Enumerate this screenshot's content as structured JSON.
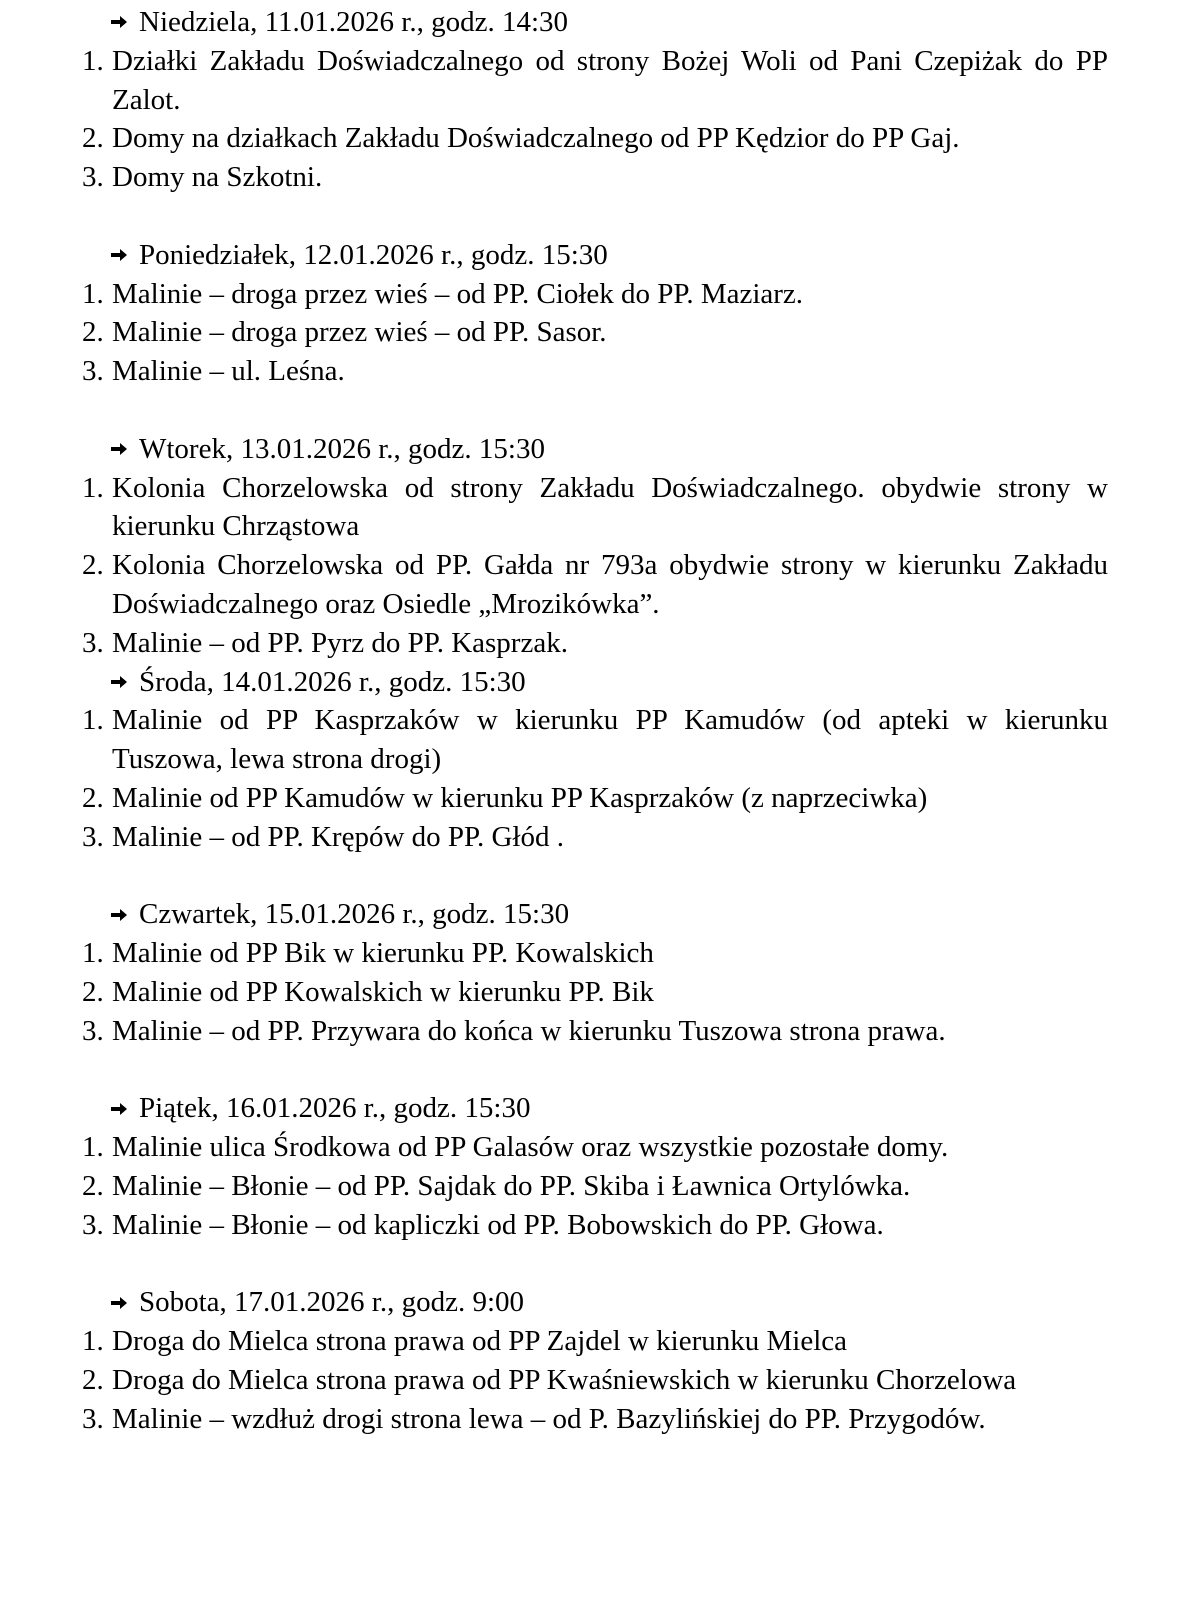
{
  "sections": [
    {
      "icon": "arrow-right-icon",
      "heading": "Niedziela, 11.01.2026 r., godz. 14:30",
      "items": [
        {
          "n": "1.",
          "t": "Działki Zakładu Doświadczalnego od strony Bożej Woli od Pani Czepiżak do PP Zalot."
        },
        {
          "n": "2.",
          "t": "Domy na działkach Zakładu Doświadczalnego od PP Kędzior do PP Gaj."
        },
        {
          "n": "3.",
          "t": "Domy na Szkotni."
        }
      ],
      "gap": true
    },
    {
      "icon": "arrow-right-icon",
      "heading": "Poniedziałek, 12.01.2026 r., godz. 15:30",
      "items": [
        {
          "n": "1.",
          "t": "Malinie – droga przez wieś – od PP. Ciołek do PP. Maziarz."
        },
        {
          "n": "2.",
          "t": "Malinie – droga przez wieś – od PP. Sasor."
        },
        {
          "n": "3.",
          "t": "Malinie – ul. Leśna."
        }
      ],
      "gap": true
    },
    {
      "icon": "arrow-right-icon",
      "heading": "Wtorek, 13.01.2026 r., godz. 15:30",
      "items": [
        {
          "n": "1.",
          "t": "Kolonia Chorzelowska od strony Zakładu Doświadczalnego. obydwie strony w kierunku Chrząstowa"
        },
        {
          "n": "2.",
          "t": "Kolonia Chorzelowska od PP. Gałda nr 793a obydwie strony w kierunku Zakładu Doświadczalnego oraz Osiedle „Mrozikówka”."
        },
        {
          "n": "3.",
          "t": "Malinie – od PP. Pyrz do PP. Kasprzak."
        }
      ],
      "gap": false
    },
    {
      "icon": "arrow-right-icon",
      "heading": "Środa, 14.01.2026 r., godz. 15:30",
      "items": [
        {
          "n": "1.",
          "t": "Malinie od PP Kasprzaków w kierunku PP Kamudów (od apteki w kierunku Tuszowa, lewa strona drogi)"
        },
        {
          "n": "2.",
          "t": "Malinie od PP Kamudów w kierunku PP Kasprzaków (z naprzeciwka)"
        },
        {
          "n": "3.",
          "t": "Malinie – od PP. Krępów do PP. Głód ."
        }
      ],
      "gap": true
    },
    {
      "icon": "arrow-right-icon",
      "heading": "Czwartek, 15.01.2026 r., godz. 15:30",
      "items": [
        {
          "n": "1.",
          "t": "Malinie od PP Bik w kierunku PP. Kowalskich"
        },
        {
          "n": "2.",
          "t": "Malinie od PP Kowalskich w kierunku PP. Bik"
        },
        {
          "n": "3.",
          "t": "Malinie – od PP. Przywara do końca w kierunku Tuszowa strona prawa."
        }
      ],
      "gap": true
    },
    {
      "icon": "arrow-right-icon",
      "heading": "Piątek, 16.01.2026 r., godz. 15:30",
      "items": [
        {
          "n": "1.",
          "t": "Malinie ulica Środkowa od PP Galasów oraz wszystkie pozostałe domy."
        },
        {
          "n": "2.",
          "t": "Malinie – Błonie – od PP. Sajdak do PP. Skiba i Ławnica Ortylówka."
        },
        {
          "n": "3.",
          "t": "Malinie – Błonie – od kapliczki od PP. Bobowskich do PP. Głowa."
        }
      ],
      "gap": true
    },
    {
      "icon": "arrow-right-icon",
      "heading": "Sobota, 17.01.2026 r., godz. 9:00",
      "items": [
        {
          "n": "1.",
          "t": "Droga do Mielca strona prawa od PP Zajdel w kierunku Mielca"
        },
        {
          "n": "2.",
          "t": "Droga do Mielca strona prawa od PP Kwaśniewskich w kierunku Chorzelowa"
        },
        {
          "n": "3.",
          "t": "Malinie – wzdłuż drogi strona lewa – od P. Bazylińskiej do PP. Przygodów."
        }
      ],
      "gap": false
    }
  ]
}
